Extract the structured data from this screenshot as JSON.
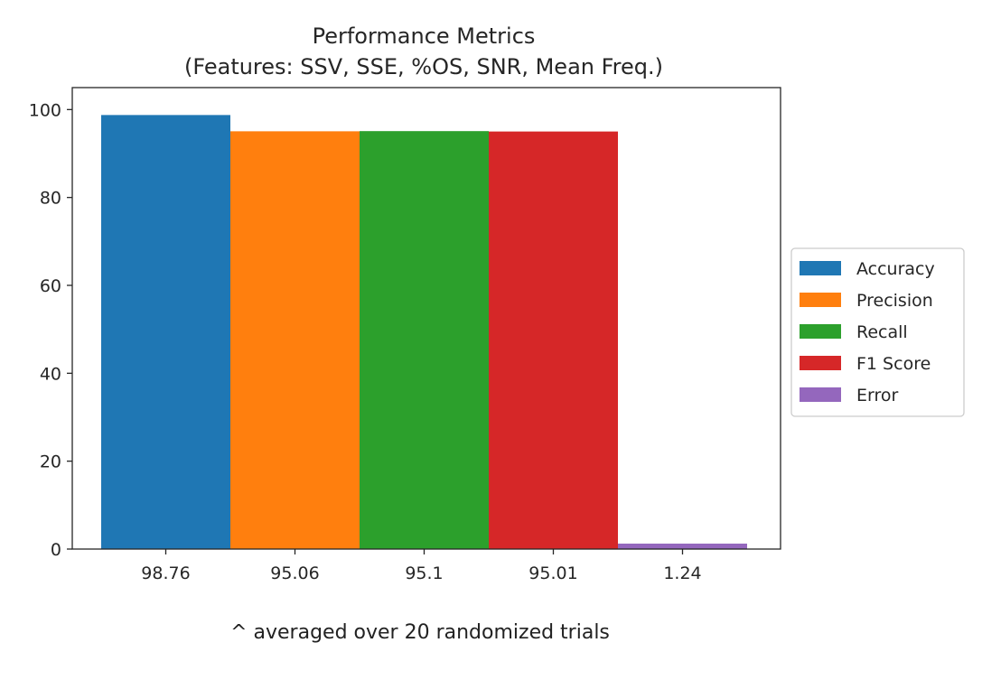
{
  "chart_data": {
    "type": "bar",
    "title": "Performance Metrics",
    "subtitle": "(Features: SSV,  SSE, %OS, SNR, Mean Freq.)",
    "categories": [
      "98.76",
      "95.06",
      "95.1",
      "95.01",
      "1.24"
    ],
    "series": [
      {
        "name": "Accuracy",
        "value": 98.76,
        "color": "#1f77b4"
      },
      {
        "name": "Precision",
        "value": 95.06,
        "color": "#ff7f0e"
      },
      {
        "name": "Recall",
        "value": 95.1,
        "color": "#2ca02c"
      },
      {
        "name": "F1 Score",
        "value": 95.01,
        "color": "#d62728"
      },
      {
        "name": "Error",
        "value": 1.24,
        "color": "#9467bd"
      }
    ],
    "yticks": [
      "0",
      "20",
      "40",
      "60",
      "80",
      "100"
    ],
    "ylim": [
      0,
      105
    ],
    "grid": false,
    "legend_position": "center-right outside"
  },
  "caption": "^ averaged over 20 randomized trials"
}
